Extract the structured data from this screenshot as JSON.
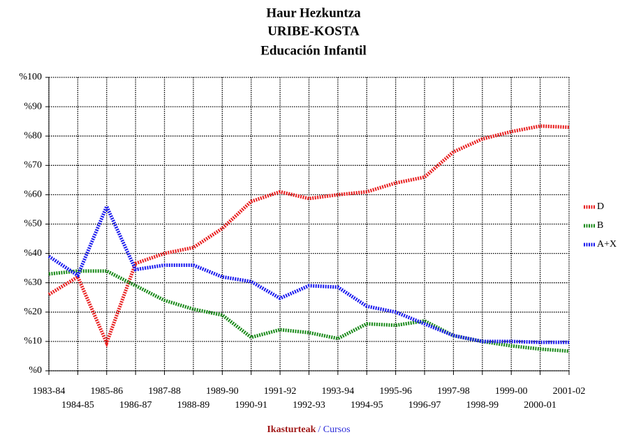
{
  "chart_data": {
    "type": "line",
    "title": [
      "Haur Hezkuntza",
      "URIBE-KOSTA",
      "Educación Infantil"
    ],
    "title_colors": [
      "#d42020",
      "#000000",
      "#1a1aee"
    ],
    "xlabel": "Ikasturteak",
    "xlabel_color": "#a01818",
    "xlabel2": "/ Cursos",
    "xlabel2_color": "#2a2ad8",
    "categories": [
      "1983-84",
      "1984-85",
      "1985-86",
      "1986-87",
      "1987-88",
      "1988-89",
      "1989-90",
      "1990-91",
      "1991-92",
      "1992-93",
      "1993-94",
      "1994-95",
      "1995-96",
      "1996-97",
      "1997-98",
      "1998-99",
      "1999-00",
      "2000-01",
      "2001-02"
    ],
    "series": [
      {
        "name": "D",
        "color": "#e82020",
        "values": [
          26,
          32,
          9.5,
          36.6,
          40,
          42,
          48.5,
          57.7,
          61,
          58.7,
          60,
          61,
          64,
          66,
          74.6,
          79,
          81.5,
          83.4,
          83
        ]
      },
      {
        "name": "B",
        "color": "#1a8a1a",
        "values": [
          33,
          34,
          34,
          29,
          24,
          21,
          19,
          11.4,
          14,
          13,
          11,
          16,
          15.5,
          17,
          12,
          10,
          8.5,
          7.4,
          6.7
        ]
      },
      {
        "name": "A+X",
        "color": "#1a1aee",
        "values": [
          39,
          32.5,
          56,
          34.5,
          36,
          36,
          32,
          30.4,
          24.7,
          29,
          28.5,
          22,
          20,
          16,
          12,
          10,
          10,
          9.7,
          9.7
        ]
      }
    ],
    "ylim": [
      0,
      100
    ],
    "yticks": [
      {
        "value": 0,
        "label": "%0"
      },
      {
        "value": 10,
        "label": "%10"
      },
      {
        "value": 20,
        "label": "%20"
      },
      {
        "value": 30,
        "label": "%30"
      },
      {
        "value": 40,
        "label": "%40"
      },
      {
        "value": 50,
        "label": "%50"
      },
      {
        "value": 60,
        "label": "%60"
      },
      {
        "value": 70,
        "label": "%70"
      },
      {
        "value": 80,
        "label": "%80"
      },
      {
        "value": 90,
        "label": "%90"
      },
      {
        "value": 100,
        "label": "%100"
      }
    ],
    "grid": true,
    "legend": "right"
  }
}
